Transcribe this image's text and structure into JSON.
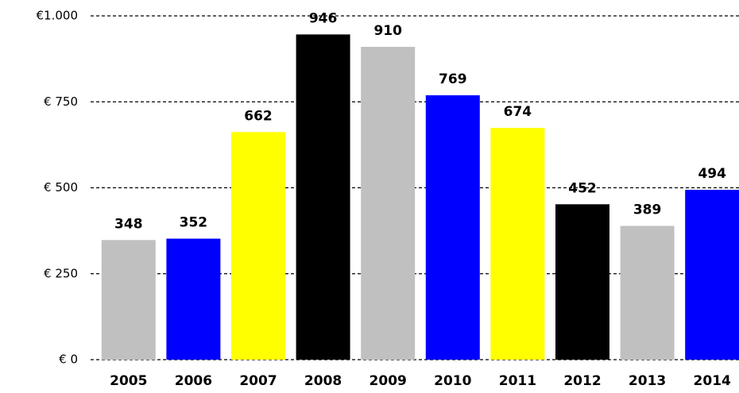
{
  "chart_data": {
    "type": "bar",
    "categories": [
      "2005",
      "2006",
      "2007",
      "2008",
      "2009",
      "2010",
      "2011",
      "2012",
      "2013",
      "2014"
    ],
    "values": [
      348,
      352,
      662,
      946,
      910,
      769,
      674,
      452,
      389,
      494
    ],
    "colors": [
      "#c0c0c0",
      "#0000ff",
      "#ffff00",
      "#000000",
      "#c0c0c0",
      "#0000ff",
      "#ffff00",
      "#000000",
      "#c0c0c0",
      "#0000ff"
    ],
    "ylim": [
      0,
      1000
    ],
    "yticks": [
      {
        "value": 0,
        "label": "€ 0"
      },
      {
        "value": 250,
        "label": "€ 250"
      },
      {
        "value": 500,
        "label": "€ 500"
      },
      {
        "value": 750,
        "label": "€ 750"
      },
      {
        "value": 1000,
        "label": "€1.000"
      }
    ],
    "grid": true
  }
}
